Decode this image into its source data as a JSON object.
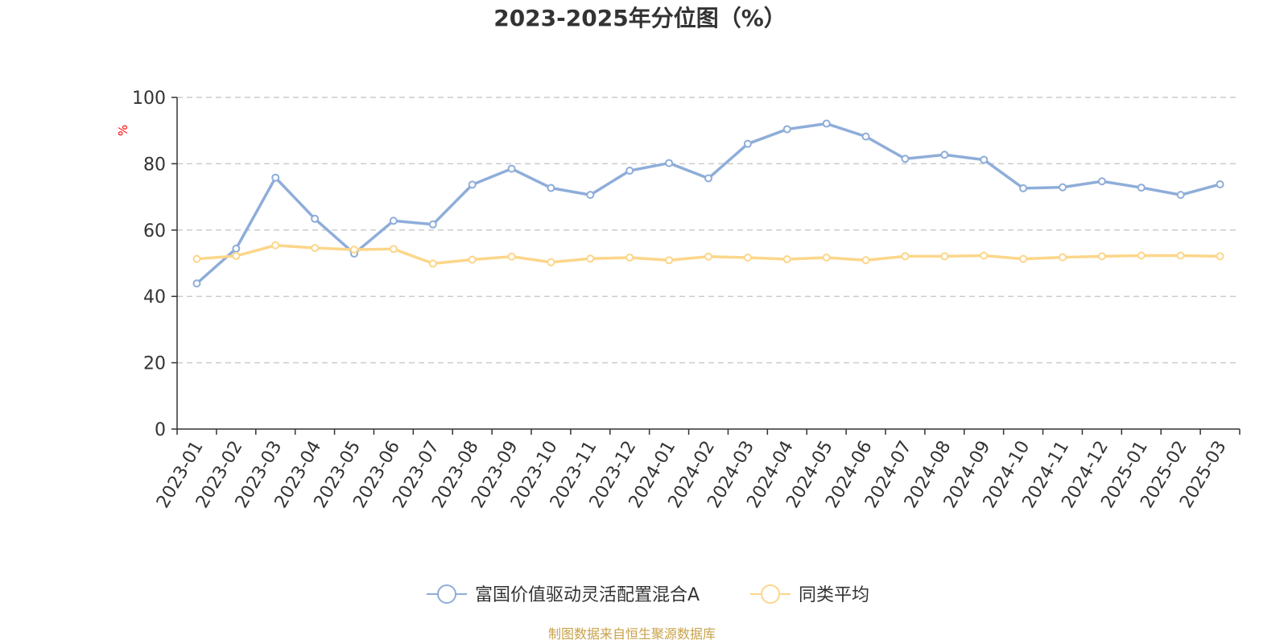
{
  "chart_data": {
    "type": "line",
    "title": "2023-2025年分位图（%）",
    "ylabel": "%",
    "ylim": [
      0,
      100
    ],
    "yticks": [
      0,
      20,
      40,
      60,
      80,
      100
    ],
    "grid": true,
    "legend_position": "bottom",
    "categories": [
      "2023-01",
      "2023-02",
      "2023-03",
      "2023-04",
      "2023-05",
      "2023-06",
      "2023-07",
      "2023-08",
      "2023-09",
      "2023-10",
      "2023-11",
      "2023-12",
      "2024-01",
      "2024-02",
      "2024-03",
      "2024-04",
      "2024-05",
      "2024-06",
      "2024-07",
      "2024-08",
      "2024-09",
      "2024-10",
      "2024-11",
      "2024-12",
      "2025-01",
      "2025-02",
      "2025-03"
    ],
    "series": [
      {
        "name": "富国价值驱动灵活配置混合A",
        "color": "#8eadd9",
        "values": [
          43.9,
          54.4,
          75.8,
          63.4,
          52.9,
          62.8,
          61.7,
          73.7,
          78.5,
          72.7,
          70.6,
          77.9,
          80.2,
          75.6,
          86.0,
          90.4,
          92.1,
          88.2,
          81.5,
          82.7,
          81.2,
          72.6,
          72.9,
          74.7,
          72.8,
          70.6,
          73.8
        ]
      },
      {
        "name": "同类平均",
        "color": "#fcd68a",
        "values": [
          51.3,
          52.2,
          55.4,
          54.6,
          54.1,
          54.3,
          49.9,
          51.1,
          52.0,
          50.3,
          51.4,
          51.7,
          50.9,
          52.0,
          51.7,
          51.2,
          51.7,
          50.9,
          52.1,
          52.1,
          52.3,
          51.3,
          51.8,
          52.1,
          52.3,
          52.3,
          52.1
        ]
      }
    ]
  },
  "source_note": "制图数据来自恒生聚源数据库",
  "colors": {
    "axis": "#333333",
    "grid": "#cccccc",
    "unit": "#ff0000",
    "source": "#c8a24a"
  }
}
